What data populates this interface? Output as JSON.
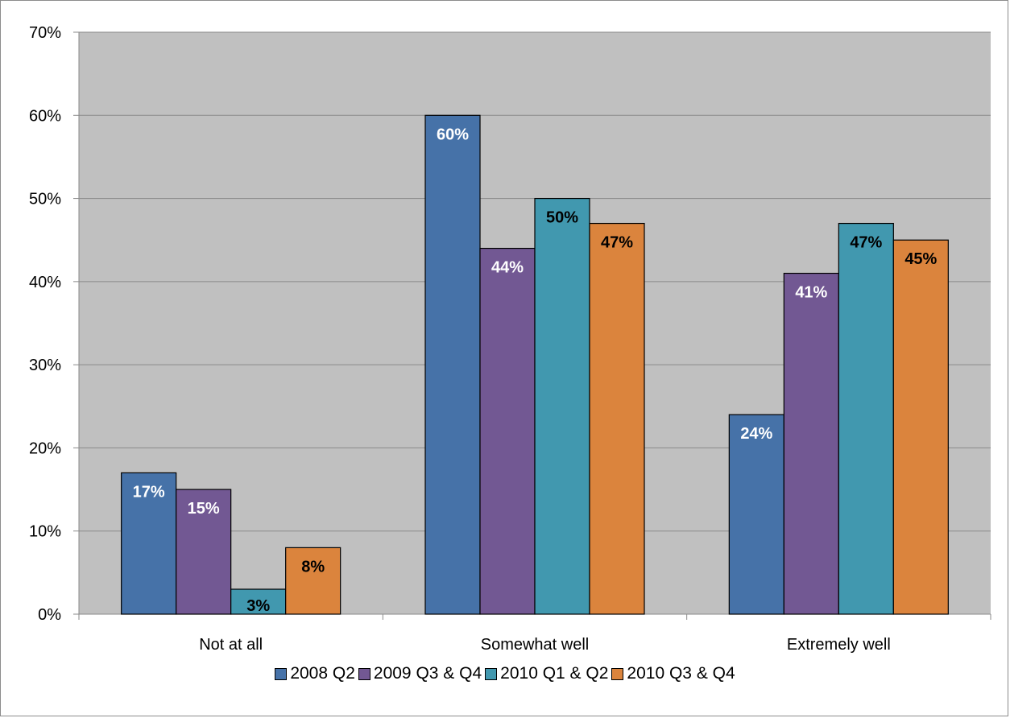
{
  "chart_data": {
    "type": "bar",
    "categories": [
      "Not at all",
      "Somewhat well",
      "Extremely well"
    ],
    "series": [
      {
        "name": "2008 Q2",
        "color": "#4672a8",
        "label_color": "#ffffff",
        "values": [
          17,
          60,
          24
        ],
        "labels": [
          "17%",
          "60%",
          "24%"
        ]
      },
      {
        "name": "2009 Q3 & Q4",
        "color": "#725893",
        "label_color": "#ffffff",
        "values": [
          15,
          44,
          41
        ],
        "labels": [
          "15%",
          "44%",
          "41%"
        ]
      },
      {
        "name": "2010 Q1 & Q2",
        "color": "#4198af",
        "label_color": "#000000",
        "values": [
          3,
          50,
          47
        ],
        "labels": [
          "3%",
          "50%",
          "47%"
        ]
      },
      {
        "name": "2010 Q3 & Q4",
        "color": "#db843d",
        "label_color": "#000000",
        "values": [
          8,
          47,
          45
        ],
        "labels": [
          "8%",
          "47%",
          "45%"
        ]
      }
    ],
    "y_ticks": [
      "0%",
      "10%",
      "20%",
      "30%",
      "40%",
      "50%",
      "60%",
      "70%"
    ],
    "ylim": [
      0,
      70
    ],
    "grid": true,
    "plot_background": "#c0c0c0",
    "legend_position": "bottom"
  }
}
